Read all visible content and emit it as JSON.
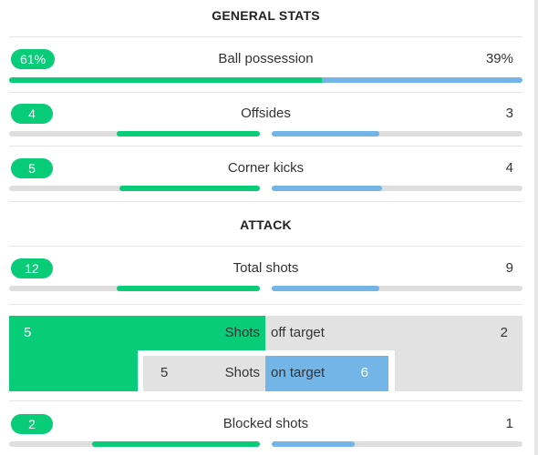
{
  "sections": {
    "general_title": "GENERAL STATS",
    "attack_title": "ATTACK"
  },
  "stats": {
    "possession": {
      "label": "Ball possession",
      "home": "61%",
      "away": "39%",
      "home_fraction": 0.61
    },
    "offsides": {
      "label": "Offsides",
      "home": "4",
      "away": "3",
      "home_fraction": 0.57,
      "away_fraction": 0.43
    },
    "corners": {
      "label": "Corner kicks",
      "home": "5",
      "away": "4",
      "home_fraction": 0.56,
      "away_fraction": 0.44
    },
    "total_shots": {
      "label": "Total shots",
      "home": "12",
      "away": "9",
      "home_fraction": 0.57,
      "away_fraction": 0.43
    },
    "shots_off": {
      "label_a": "Shots",
      "label_b": "off target",
      "home": "5",
      "away": "2"
    },
    "shots_on": {
      "label_a": "Shots",
      "label_b": "on target",
      "home": "5",
      "away": "6"
    },
    "blocked": {
      "label": "Blocked shots",
      "home": "2",
      "away": "1",
      "home_fraction": 0.67,
      "away_fraction": 0.33
    }
  },
  "colors": {
    "home": "#08cc78",
    "away": "#72b5e6",
    "track": "#dedede"
  }
}
